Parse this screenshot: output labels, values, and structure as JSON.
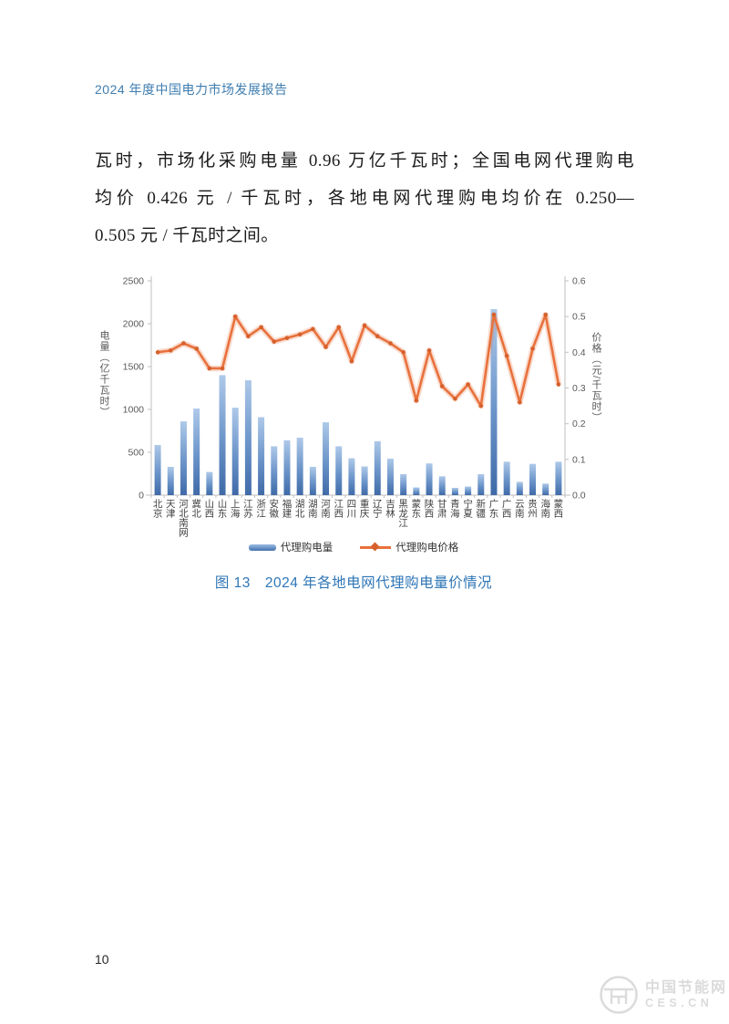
{
  "header": {
    "title": "2024 年度中国电力市场发展报告"
  },
  "paragraph": {
    "lines": [
      "瓦时，市场化采购电量 0.96 万亿千瓦时；全国电网代理购电",
      "均价 0.426 元 / 千瓦时，各地电网代理购电均价在 0.250—",
      "0.505 元 / 千瓦时之间。"
    ]
  },
  "chart_data": {
    "type": "bar+line",
    "categories": [
      "北京",
      "天津",
      "河北南网",
      "冀北",
      "山西",
      "山东",
      "上海",
      "江苏",
      "浙江",
      "安徽",
      "福建",
      "湖北",
      "湖南",
      "河南",
      "江西",
      "四川",
      "重庆",
      "辽宁",
      "吉林",
      "黑龙江",
      "蒙东",
      "陕西",
      "甘肃",
      "青海",
      "宁夏",
      "新疆",
      "广东",
      "广西",
      "云南",
      "贵州",
      "海南",
      "蒙西"
    ],
    "series": [
      {
        "name": "代理购电量",
        "type": "bar",
        "axis": "left",
        "values": [
          585,
          330,
          860,
          1010,
          270,
          1400,
          1020,
          1340,
          910,
          570,
          640,
          670,
          330,
          850,
          570,
          430,
          335,
          630,
          425,
          245,
          90,
          370,
          220,
          85,
          100,
          245,
          2170,
          390,
          155,
          365,
          135,
          390
        ]
      },
      {
        "name": "代理购电价格",
        "type": "line",
        "axis": "right",
        "values": [
          0.4,
          0.405,
          0.425,
          0.41,
          0.355,
          0.355,
          0.5,
          0.445,
          0.47,
          0.43,
          0.44,
          0.45,
          0.465,
          0.415,
          0.47,
          0.375,
          0.475,
          0.445,
          0.425,
          0.4,
          0.265,
          0.405,
          0.305,
          0.27,
          0.31,
          0.25,
          0.505,
          0.39,
          0.26,
          0.41,
          0.505,
          0.31
        ]
      }
    ],
    "y_left": {
      "title": "电量（亿千瓦时）",
      "min": 0,
      "max": 2500,
      "ticks": [
        0,
        500,
        1000,
        1500,
        2000,
        2500
      ]
    },
    "y_right": {
      "title": "价格（元/千瓦时）",
      "min": 0,
      "max": 0.6,
      "ticks": [
        "0.0",
        "0.1",
        "0.2",
        "0.3",
        "0.4",
        "0.5",
        "0.6"
      ]
    },
    "grid": false,
    "legend_position": "bottom",
    "colors": {
      "bar_top": "#aec9e9",
      "bar_bottom": "#3f6aa8",
      "line": "#e8713c",
      "marker": "#d7602c",
      "axis": "#bfbfbf",
      "tick_text": "#595959",
      "xlabel_text": "#404040"
    }
  },
  "caption": {
    "label": "图 13",
    "title": "2024 年各地电网代理购电量价情况"
  },
  "footer": {
    "page_number": "10"
  },
  "watermark": {
    "site_name": "中国节能网",
    "site_code": "CES.CN"
  }
}
